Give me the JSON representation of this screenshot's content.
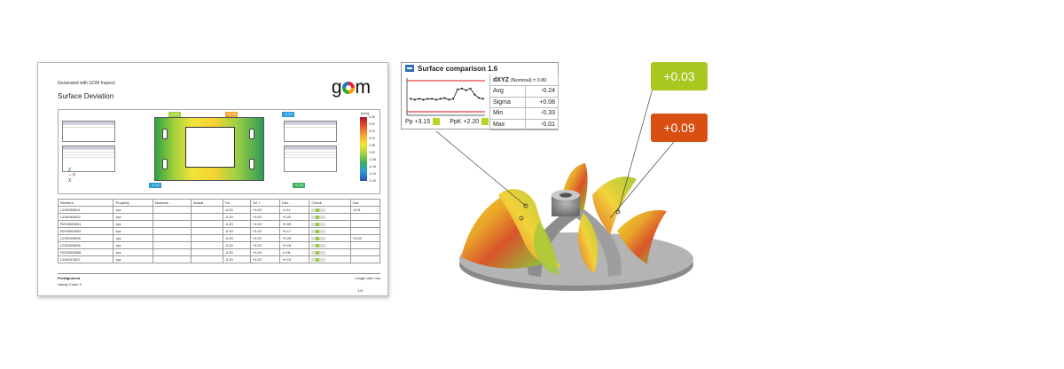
{
  "report": {
    "generated": "Generated with GOM Inspect",
    "title": "Surface Deviation",
    "logo": "gom",
    "figure": {
      "color_bar_unit": "[mm]",
      "color_bar_labels": [
        "0.40",
        "0.32",
        "0.24",
        "0.16",
        "0.08",
        "0.00",
        "-0.08",
        "-0.16",
        "-0.24",
        "-0.40"
      ],
      "callouts": [
        {
          "value": "+0.12",
          "color": "#a6d23b"
        },
        {
          "value": "+0.29",
          "color": "#f5a531"
        },
        {
          "value": "-0.20",
          "color": "#2a9ad8"
        },
        {
          "value": "-0.18",
          "color": "#2a9ad8"
        },
        {
          "value": "+0.00",
          "color": "#3cb05c"
        }
      ],
      "axes": {
        "x": "X",
        "y": "Y",
        "z": "Z"
      }
    },
    "table": {
      "headers": [
        "Element",
        "Property",
        "Nominal",
        "Actual",
        "Tol -",
        "Tol +",
        "Dev.",
        "Check",
        "Out"
      ],
      "rows": [
        {
          "element": "L2X0053001",
          "property": "xyz",
          "tol_minus": "-0.20",
          "tol_plus": "+0.20",
          "dev": "-0.21",
          "out": "-0.01"
        },
        {
          "element": "L2X0063002",
          "property": "xyz",
          "tol_minus": "-0.20",
          "tol_plus": "+0.20",
          "dev": "+0.20",
          "out": ""
        },
        {
          "element": "R2X0053001",
          "property": "xyz",
          "tol_minus": "-0.20",
          "tol_plus": "+0.20",
          "dev": "+0.00",
          "out": ""
        },
        {
          "element": "R2X0063002",
          "property": "xyz",
          "tol_minus": "-0.20",
          "tol_plus": "+0.20",
          "dev": "+0.17",
          "out": ""
        },
        {
          "element": "L2X0003005",
          "property": "xyz",
          "tol_minus": "-0.20",
          "tol_plus": "+0.20",
          "dev": "+0.29",
          "out": "+0.09"
        },
        {
          "element": "L2X0303006",
          "property": "xyz",
          "tol_minus": "-0.20",
          "tol_plus": "+0.20",
          "dev": "+0.16",
          "out": ""
        },
        {
          "element": "R2X0303006",
          "property": "xyz",
          "tol_minus": "-0.20",
          "tol_plus": "+0.20",
          "dev": "-0.18",
          "out": ""
        },
        {
          "element": "L3X0013007",
          "property": "xyz",
          "tol_minus": "-0.20",
          "tol_plus": "+0.20",
          "dev": "+0.10",
          "out": ""
        }
      ]
    },
    "footer": {
      "prealign": "Prealignment",
      "units": "Length unit: mm",
      "cover": "Handy Cover 2",
      "page": "1/4"
    }
  },
  "popup": {
    "title": "Surface comparison 1.6",
    "header_label": "dXYZ",
    "header_sub": "(Nominal) ± 0.80",
    "rows": [
      {
        "label": "Avg",
        "value": "-0.24"
      },
      {
        "label": "Sigma",
        "value": "+0.08"
      },
      {
        "label": "Min",
        "value": "-0.33"
      },
      {
        "label": "Max",
        "value": "-0.01"
      }
    ],
    "pp": "Pp +3.15",
    "ppk": "PpK +2.20",
    "capability_color": "#b5d628",
    "trend": [
      -0.25,
      -0.26,
      -0.25,
      -0.26,
      -0.25,
      -0.25,
      -0.26,
      -0.25,
      -0.24,
      -0.26,
      -0.25,
      -0.14,
      -0.13,
      -0.15,
      -0.13,
      -0.2,
      -0.24,
      -0.25
    ]
  },
  "callouts": [
    {
      "value": "+0.03",
      "color": "#a7c91f"
    },
    {
      "value": "+0.09",
      "color": "#d94f12"
    }
  ]
}
